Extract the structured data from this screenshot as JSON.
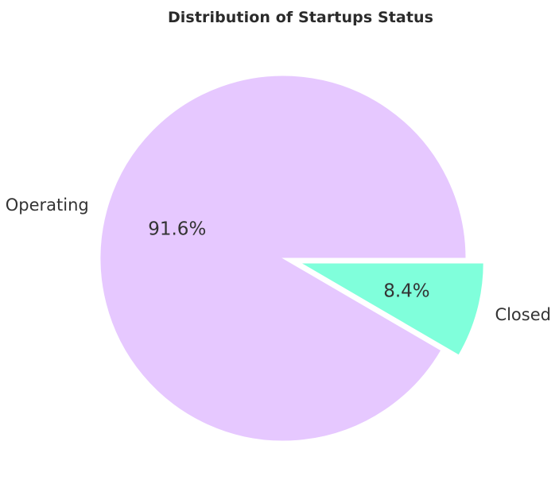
{
  "chart_data": {
    "type": "pie",
    "title": "Distribution of Startups Status",
    "slices": [
      {
        "label": "Operating",
        "value": 91.6,
        "pct_label": "91.6%",
        "color": "#e6c8ff",
        "explode": false
      },
      {
        "label": "Closed",
        "value": 8.4,
        "pct_label": "8.4%",
        "color": "#80ffdb",
        "explode": true
      }
    ],
    "start_angle_deg": 0,
    "direction": "counterclockwise",
    "legend": "none"
  }
}
